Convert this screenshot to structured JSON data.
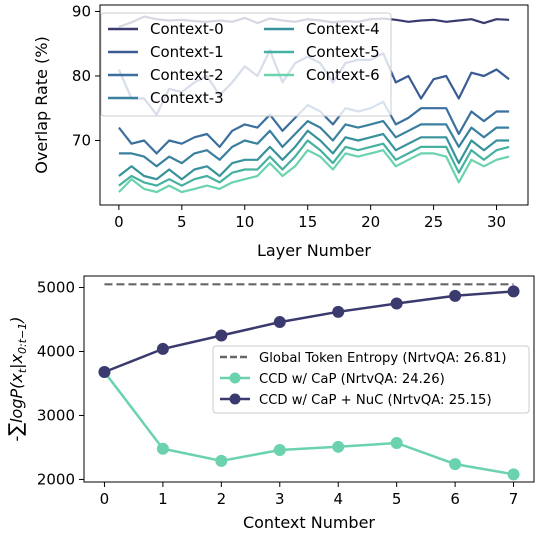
{
  "chart_data": [
    {
      "type": "line",
      "title": "",
      "xlabel": "Layer Number",
      "ylabel": "Overlap Rate (%)",
      "xlim": [
        -1.5,
        32.5
      ],
      "ylim": [
        60,
        91
      ],
      "xticks": [
        0,
        5,
        10,
        15,
        20,
        25,
        30
      ],
      "yticks": [
        70,
        80,
        90
      ],
      "grid": false,
      "legend": "top-left",
      "legend_columns": 2,
      "x": [
        0,
        1,
        2,
        3,
        4,
        5,
        6,
        7,
        8,
        9,
        10,
        11,
        12,
        13,
        14,
        15,
        16,
        17,
        18,
        19,
        20,
        21,
        22,
        23,
        24,
        25,
        26,
        27,
        28,
        29,
        30,
        31
      ],
      "series": [
        {
          "name": "Context-0",
          "color": "#3b3a6e",
          "values": [
            87.6,
            88.3,
            89.2,
            88.8,
            88.6,
            88.7,
            88.5,
            88.4,
            88.6,
            88.4,
            89.0,
            88.2,
            88.9,
            88.6,
            88.4,
            88.8,
            88.6,
            88.3,
            88.5,
            88.4,
            88.8,
            88.9,
            88.7,
            88.4,
            88.6,
            88.7,
            88.4,
            88.6,
            88.8,
            88.2,
            88.8,
            88.7
          ]
        },
        {
          "name": "Context-1",
          "color": "#3a5b94",
          "values": [
            81.0,
            76.5,
            76.5,
            74.0,
            78.0,
            77.5,
            79.0,
            80.0,
            77.0,
            79.0,
            81.5,
            80.0,
            84.0,
            79.0,
            82.0,
            83.0,
            82.0,
            79.0,
            82.0,
            82.5,
            82.5,
            83.5,
            79.0,
            80.0,
            76.5,
            79.5,
            80.0,
            76.5,
            80.5,
            80.0,
            81.0,
            79.5
          ]
        },
        {
          "name": "Context-2",
          "color": "#3a6f9e",
          "values": [
            72.0,
            69.5,
            70.0,
            68.0,
            70.0,
            69.5,
            70.5,
            71.0,
            69.0,
            71.5,
            72.5,
            72.0,
            74.0,
            71.5,
            73.5,
            75.5,
            74.5,
            72.5,
            75.0,
            74.5,
            75.0,
            76.0,
            72.5,
            73.5,
            75.0,
            75.0,
            75.0,
            71.0,
            74.5,
            73.0,
            74.5,
            74.5
          ]
        },
        {
          "name": "Context-3",
          "color": "#3a809f",
          "values": [
            68.0,
            68.0,
            67.5,
            66.0,
            67.5,
            66.5,
            68.0,
            68.5,
            67.0,
            69.0,
            70.0,
            69.5,
            71.5,
            69.0,
            71.0,
            73.0,
            72.0,
            70.0,
            72.5,
            72.0,
            72.5,
            73.0,
            70.5,
            71.5,
            72.5,
            72.5,
            72.5,
            69.0,
            72.0,
            70.5,
            72.0,
            72.0
          ]
        },
        {
          "name": "Context-4",
          "color": "#38929c",
          "values": [
            64.5,
            66.0,
            64.5,
            64.0,
            65.5,
            64.0,
            65.5,
            66.0,
            64.5,
            66.5,
            67.0,
            67.0,
            69.0,
            67.0,
            69.0,
            71.5,
            70.0,
            68.0,
            70.5,
            70.0,
            70.5,
            71.0,
            68.5,
            69.5,
            70.5,
            70.5,
            70.5,
            66.5,
            70.0,
            68.5,
            70.0,
            70.0
          ]
        },
        {
          "name": "Context-5",
          "color": "#46b1a0",
          "values": [
            63.0,
            64.5,
            63.5,
            63.0,
            64.0,
            63.0,
            64.0,
            64.5,
            63.5,
            65.0,
            65.5,
            65.5,
            67.5,
            65.5,
            67.5,
            70.0,
            68.5,
            66.5,
            69.0,
            68.5,
            69.0,
            69.5,
            67.0,
            68.0,
            69.0,
            69.0,
            69.0,
            65.0,
            68.5,
            67.0,
            68.5,
            69.0
          ]
        },
        {
          "name": "Context-6",
          "color": "#6ad3ae",
          "values": [
            62.0,
            64.0,
            62.5,
            62.0,
            63.0,
            62.0,
            62.5,
            63.0,
            62.5,
            63.5,
            64.0,
            64.5,
            66.5,
            64.5,
            66.0,
            68.5,
            67.5,
            65.5,
            68.0,
            67.5,
            68.0,
            68.5,
            66.0,
            67.0,
            68.0,
            68.0,
            67.5,
            63.5,
            67.0,
            66.0,
            67.0,
            67.5
          ]
        }
      ]
    },
    {
      "type": "line",
      "title": "",
      "xlabel": "Context Number",
      "ylabel": "-∑logP(x_t|x_{0:t-1})",
      "xlim": [
        -0.35,
        7.35
      ],
      "ylim": [
        1960,
        5180
      ],
      "xticks": [
        0,
        1,
        2,
        3,
        4,
        5,
        6,
        7
      ],
      "yticks": [
        2000,
        3000,
        4000,
        5000
      ],
      "grid": false,
      "legend": "right",
      "reference_line": {
        "name": "Global Token Entropy (NrtvQA: 26.81)",
        "value": 5050,
        "style": "dashed",
        "color": "#666666"
      },
      "x": [
        0,
        1,
        2,
        3,
        4,
        5,
        6,
        7
      ],
      "series": [
        {
          "name": "CCD w/ CaP (NrtvQA: 24.26)",
          "color": "#6ad3ae",
          "values": [
            3680,
            2480,
            2290,
            2460,
            2510,
            2570,
            2240,
            2080
          ]
        },
        {
          "name": "CCD w/ CaP + NuC (NrtvQA: 25.15)",
          "color": "#3b3a6e",
          "values": [
            3680,
            4040,
            4250,
            4460,
            4620,
            4750,
            4870,
            4940
          ]
        }
      ]
    }
  ]
}
